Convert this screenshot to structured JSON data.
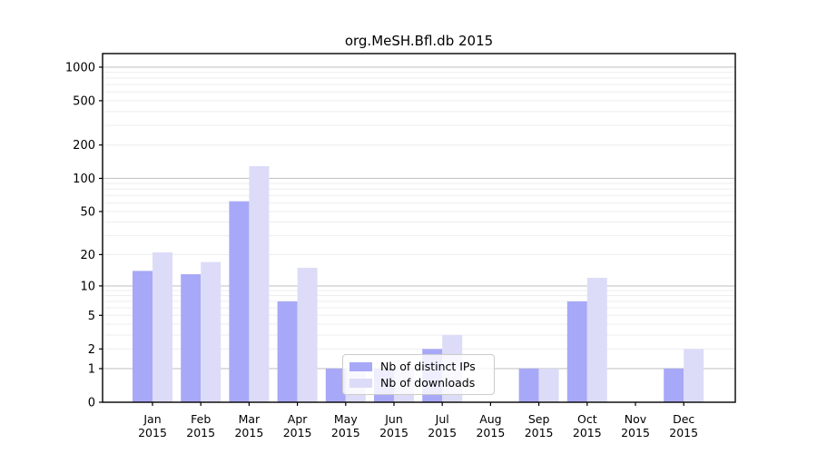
{
  "chart_data": {
    "type": "bar",
    "title": "org.MeSH.Bfl.db 2015",
    "months": [
      "Jan",
      "Feb",
      "Mar",
      "Apr",
      "May",
      "Jun",
      "Jul",
      "Aug",
      "Sep",
      "Oct",
      "Nov",
      "Dec"
    ],
    "year": "2015",
    "y_ticks": [
      0,
      1,
      2,
      5,
      10,
      20,
      50,
      100,
      200,
      500,
      1000
    ],
    "y_scale": "log10(1+x)",
    "ylim": [
      0,
      1275
    ],
    "grid": true,
    "legend_position": "lower center (inside plot)",
    "series": [
      {
        "name": "Nb of distinct IPs",
        "color": "#a8a8f8",
        "values": [
          14,
          13,
          62,
          7,
          1,
          1,
          2,
          0,
          1,
          7,
          0,
          1
        ]
      },
      {
        "name": "Nb of downloads",
        "color": "#dcdcf8",
        "values": [
          21,
          17,
          129,
          15,
          1,
          1,
          3,
          0,
          1,
          12,
          0,
          2
        ]
      }
    ],
    "colors": {
      "major_gridline": "#c6c6c6",
      "minor_gridline": "#ededed",
      "axis_frame": "#000000"
    }
  }
}
